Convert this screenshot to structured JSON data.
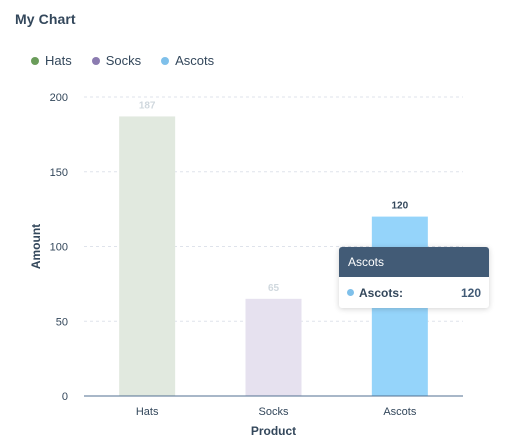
{
  "card": {
    "title": "My Chart"
  },
  "legend": [
    {
      "label": "Hats",
      "color": "#6a9c5a"
    },
    {
      "label": "Socks",
      "color": "#8b7bb0"
    },
    {
      "label": "Ascots",
      "color": "#7fc0ea"
    }
  ],
  "tooltip": {
    "title": "Ascots",
    "label": "Ascots:",
    "value": "120",
    "dot_color": "#7fc0ea"
  },
  "chart_data": {
    "type": "bar",
    "categories": [
      "Hats",
      "Socks",
      "Ascots"
    ],
    "values": [
      187,
      65,
      120
    ],
    "data_labels": [
      "187",
      "65",
      "120"
    ],
    "bar_colors": [
      "#e1e9df",
      "#e6e1ef",
      "#95d4fa"
    ],
    "label_colors": [
      "#d0d8de",
      "#d0d8de",
      "#33475b"
    ],
    "highlighted_index": 2,
    "xlabel": "Product",
    "ylabel": "Amount",
    "ylim": [
      0,
      200
    ],
    "yticks": [
      0,
      50,
      100,
      150,
      200
    ],
    "grid": true
  }
}
